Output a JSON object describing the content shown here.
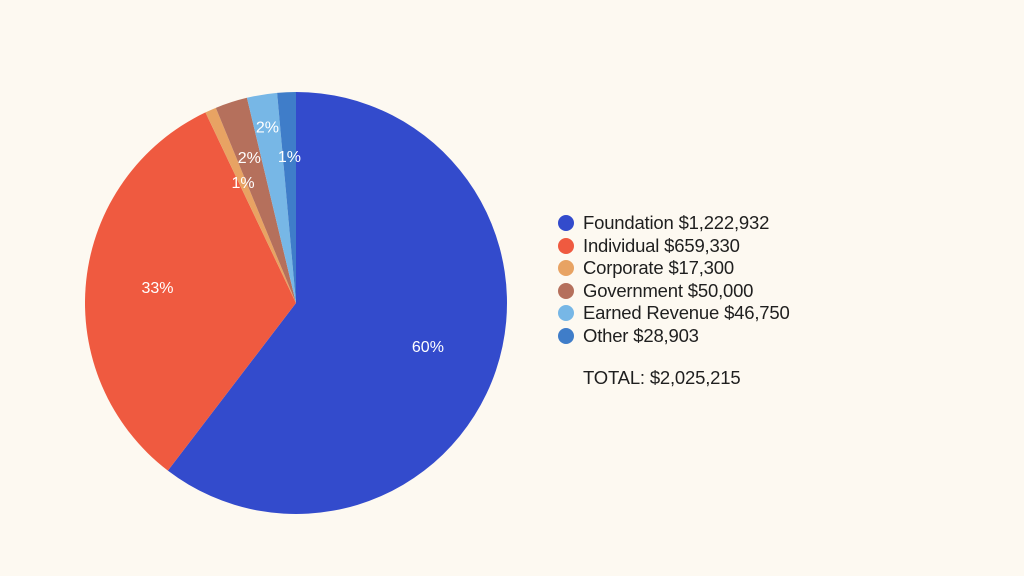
{
  "chart_data": {
    "type": "pie",
    "slices": [
      {
        "name": "Foundation",
        "amount": "$1,222,932",
        "value": 1222932,
        "label": "60%",
        "color": "#334bcc"
      },
      {
        "name": "Individual",
        "amount": "$659,330",
        "value": 659330,
        "label": "33%",
        "color": "#ef5a40"
      },
      {
        "name": "Corporate",
        "amount": "$17,300",
        "value": 17300,
        "label": "1%",
        "color": "#e8a363"
      },
      {
        "name": "Government",
        "amount": "$50,000",
        "value": 50000,
        "label": "2%",
        "color": "#b5705c"
      },
      {
        "name": "Earned Revenue",
        "amount": "$46,750",
        "value": 46750,
        "label": "2%",
        "color": "#77b7e6"
      },
      {
        "name": "Other",
        "amount": "$28,903",
        "value": 28903,
        "label": "1%",
        "color": "#3f7dc9"
      }
    ],
    "total_label": "TOTAL:",
    "total_value": "$2,025,215",
    "legend": "right"
  }
}
